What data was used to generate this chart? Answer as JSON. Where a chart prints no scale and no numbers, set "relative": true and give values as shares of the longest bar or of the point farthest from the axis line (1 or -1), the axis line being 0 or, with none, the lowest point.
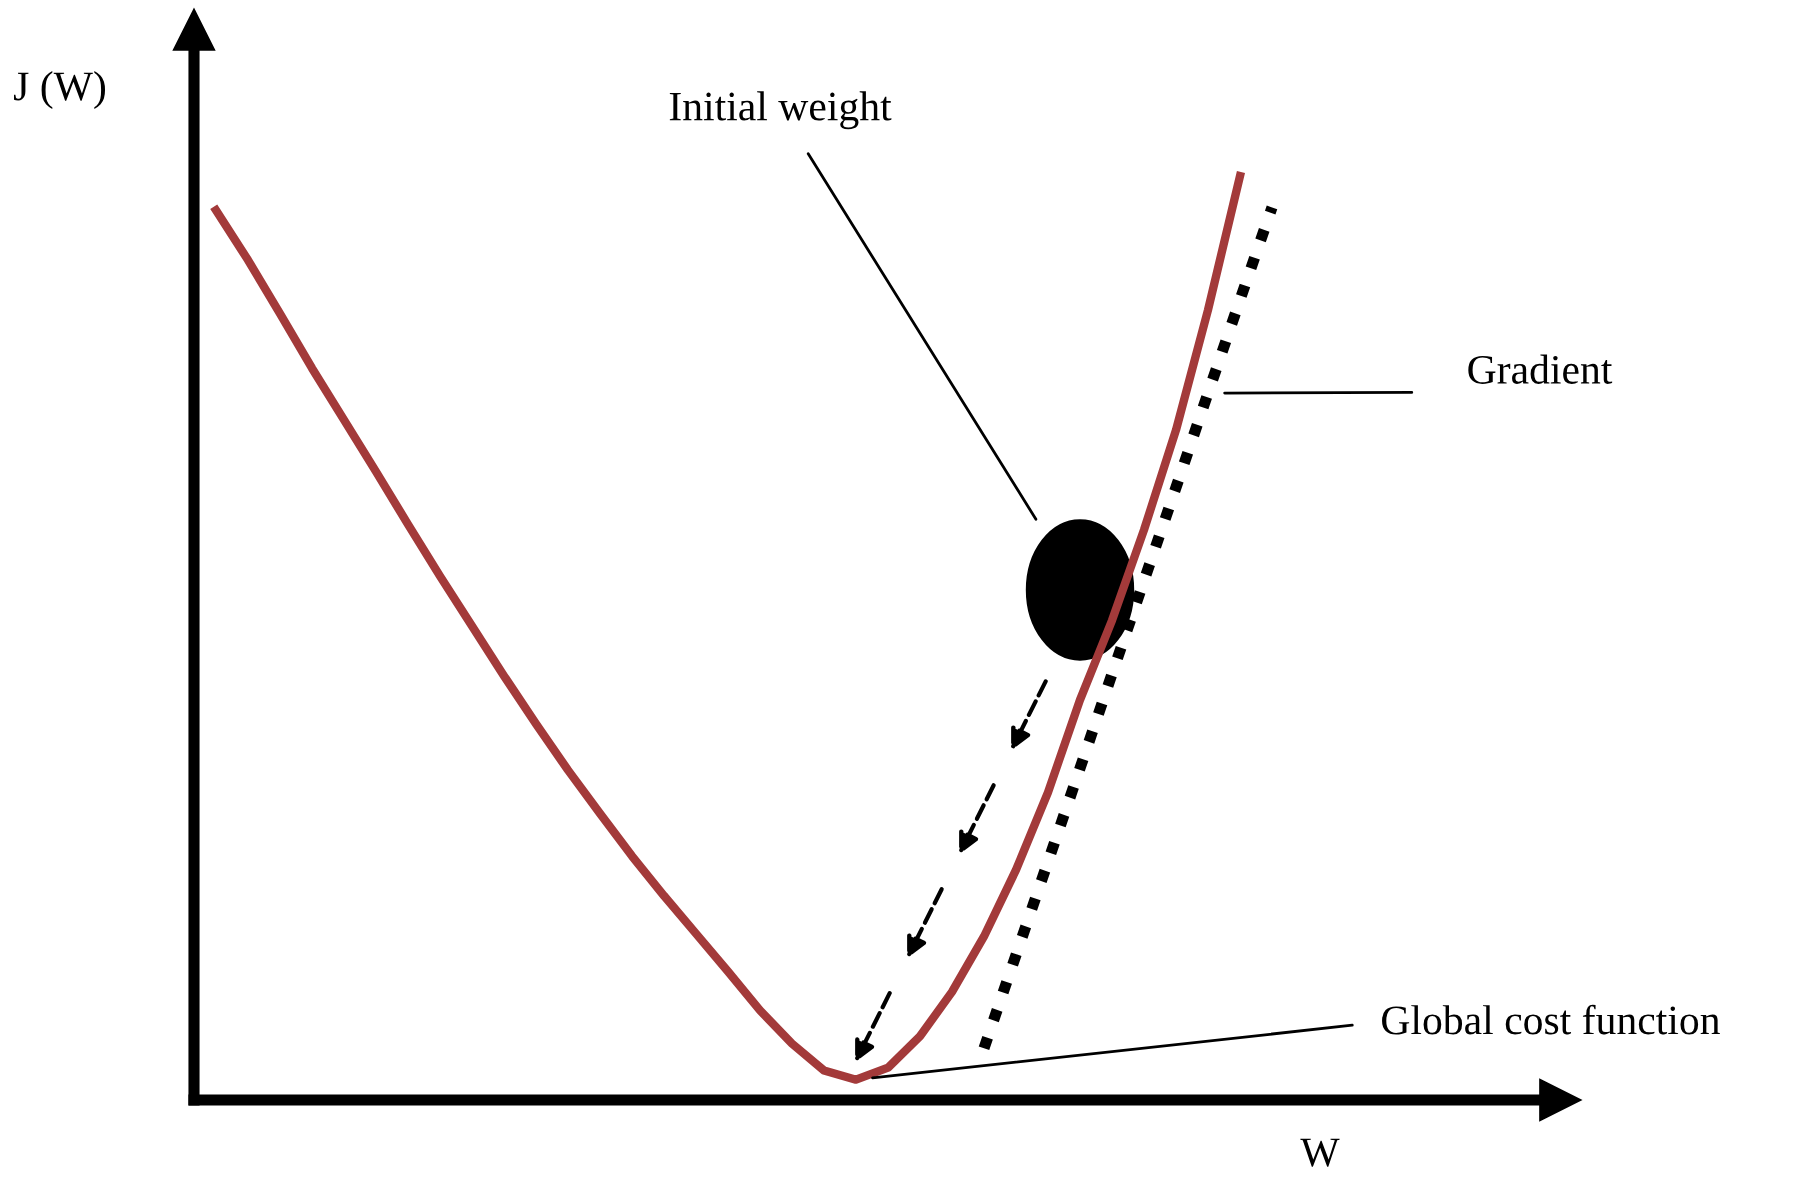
{
  "chart_data": {
    "type": "line",
    "relative": true,
    "xlabel": "W",
    "ylabel": "J (W)",
    "categories": [
      null,
      null,
      null,
      null,
      null,
      null,
      null,
      null,
      null,
      null,
      null,
      null,
      null,
      null,
      null,
      null,
      null,
      null,
      null,
      null,
      null,
      null,
      null,
      null,
      null,
      null,
      null,
      null,
      null,
      null,
      null,
      null,
      null,
      null
    ],
    "series": [
      {
        "color": "#a33a3a",
        "line_style": "solid",
        "values": [
          0.963,
          0.909,
          0.851,
          0.792,
          0.736,
          0.68,
          0.623,
          0.567,
          0.513,
          0.459,
          0.407,
          0.357,
          0.31,
          0.264,
          0.221,
          0.18,
          0.139,
          0.097,
          0.061,
          0.032,
          0.022,
          0.035,
          0.069,
          0.117,
          0.177,
          0.249,
          0.333,
          0.433,
          0.519,
          0.617,
          0.725,
          0.855,
          1,
          null
        ]
      },
      {
        "color": "#000000",
        "line_style": "dotted",
        "values": [
          null,
          null,
          null,
          null,
          null,
          null,
          null,
          null,
          null,
          null,
          null,
          null,
          null,
          null,
          null,
          null,
          null,
          null,
          null,
          null,
          null,
          null,
          null,
          null,
          0.056,
          0.157,
          0.258,
          0.359,
          0.461,
          0.562,
          0.663,
          0.765,
          0.866,
          0.966
        ]
      }
    ],
    "annotations": [
      "Initial weight",
      "Gradient",
      "Global cost function"
    ],
    "legend": false,
    "grid": false
  }
}
